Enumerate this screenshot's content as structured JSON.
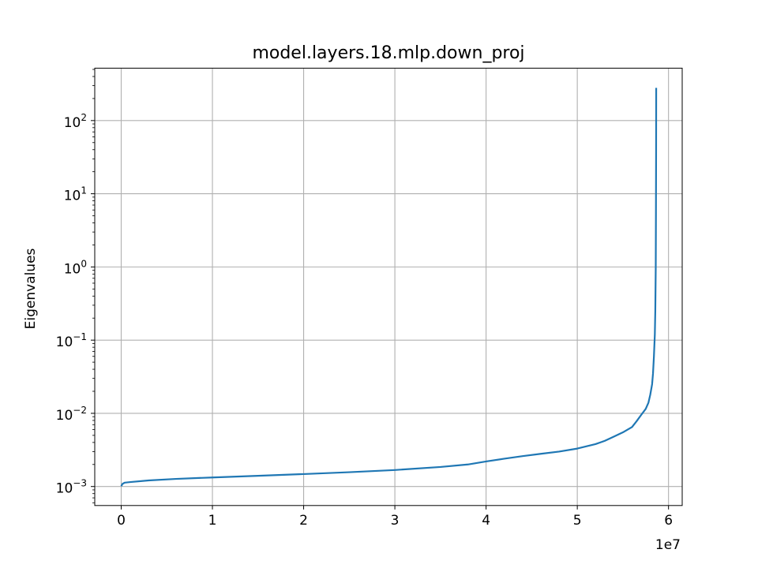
{
  "chart_data": {
    "type": "line",
    "title": "model.layers.18.mlp.down_proj",
    "xlabel": "",
    "ylabel": "Eigenvalues",
    "x_offset_label": "1e7",
    "xscale": "linear",
    "yscale": "log",
    "xlim": [
      -2900000,
      61500000
    ],
    "ylim": [
      0.00055,
      520
    ],
    "grid": true,
    "x_ticks": [
      {
        "value": 0,
        "label": "0"
      },
      {
        "value": 10000000,
        "label": "1"
      },
      {
        "value": 20000000,
        "label": "2"
      },
      {
        "value": 30000000,
        "label": "3"
      },
      {
        "value": 40000000,
        "label": "4"
      },
      {
        "value": 50000000,
        "label": "5"
      },
      {
        "value": 60000000,
        "label": "6"
      }
    ],
    "y_ticks": [
      {
        "value": 0.001,
        "base": "10",
        "exp": "−3"
      },
      {
        "value": 0.01,
        "base": "10",
        "exp": "−2"
      },
      {
        "value": 0.1,
        "base": "10",
        "exp": "−1"
      },
      {
        "value": 1,
        "base": "10",
        "exp": "0"
      },
      {
        "value": 10,
        "base": "10",
        "exp": "1"
      },
      {
        "value": 100,
        "base": "10",
        "exp": "2"
      }
    ],
    "series": [
      {
        "color": "#1f77b4",
        "x": [
          0,
          150000,
          400000,
          1000000,
          3000000,
          6000000,
          10000000,
          15000000,
          20000000,
          25000000,
          30000000,
          35000000,
          38000000,
          40000000,
          42000000,
          44000000,
          46000000,
          48000000,
          50000000,
          52000000,
          53000000,
          54000000,
          55000000,
          56000000,
          56500000,
          57000000,
          57500000,
          57800000,
          58000000,
          58200000,
          58300000,
          58400000,
          58500000,
          58550000,
          58600000,
          58620000,
          58640000,
          58650000
        ],
        "y": [
          0.00101,
          0.00109,
          0.00113,
          0.00115,
          0.00121,
          0.00127,
          0.00133,
          0.0014,
          0.00148,
          0.00157,
          0.00168,
          0.00185,
          0.002,
          0.0022,
          0.0024,
          0.0026,
          0.0028,
          0.003,
          0.0033,
          0.0038,
          0.0042,
          0.0048,
          0.0055,
          0.0065,
          0.0078,
          0.0095,
          0.0115,
          0.014,
          0.018,
          0.025,
          0.035,
          0.06,
          0.12,
          0.25,
          1.0,
          5.0,
          40.0,
          280.0
        ]
      }
    ]
  }
}
